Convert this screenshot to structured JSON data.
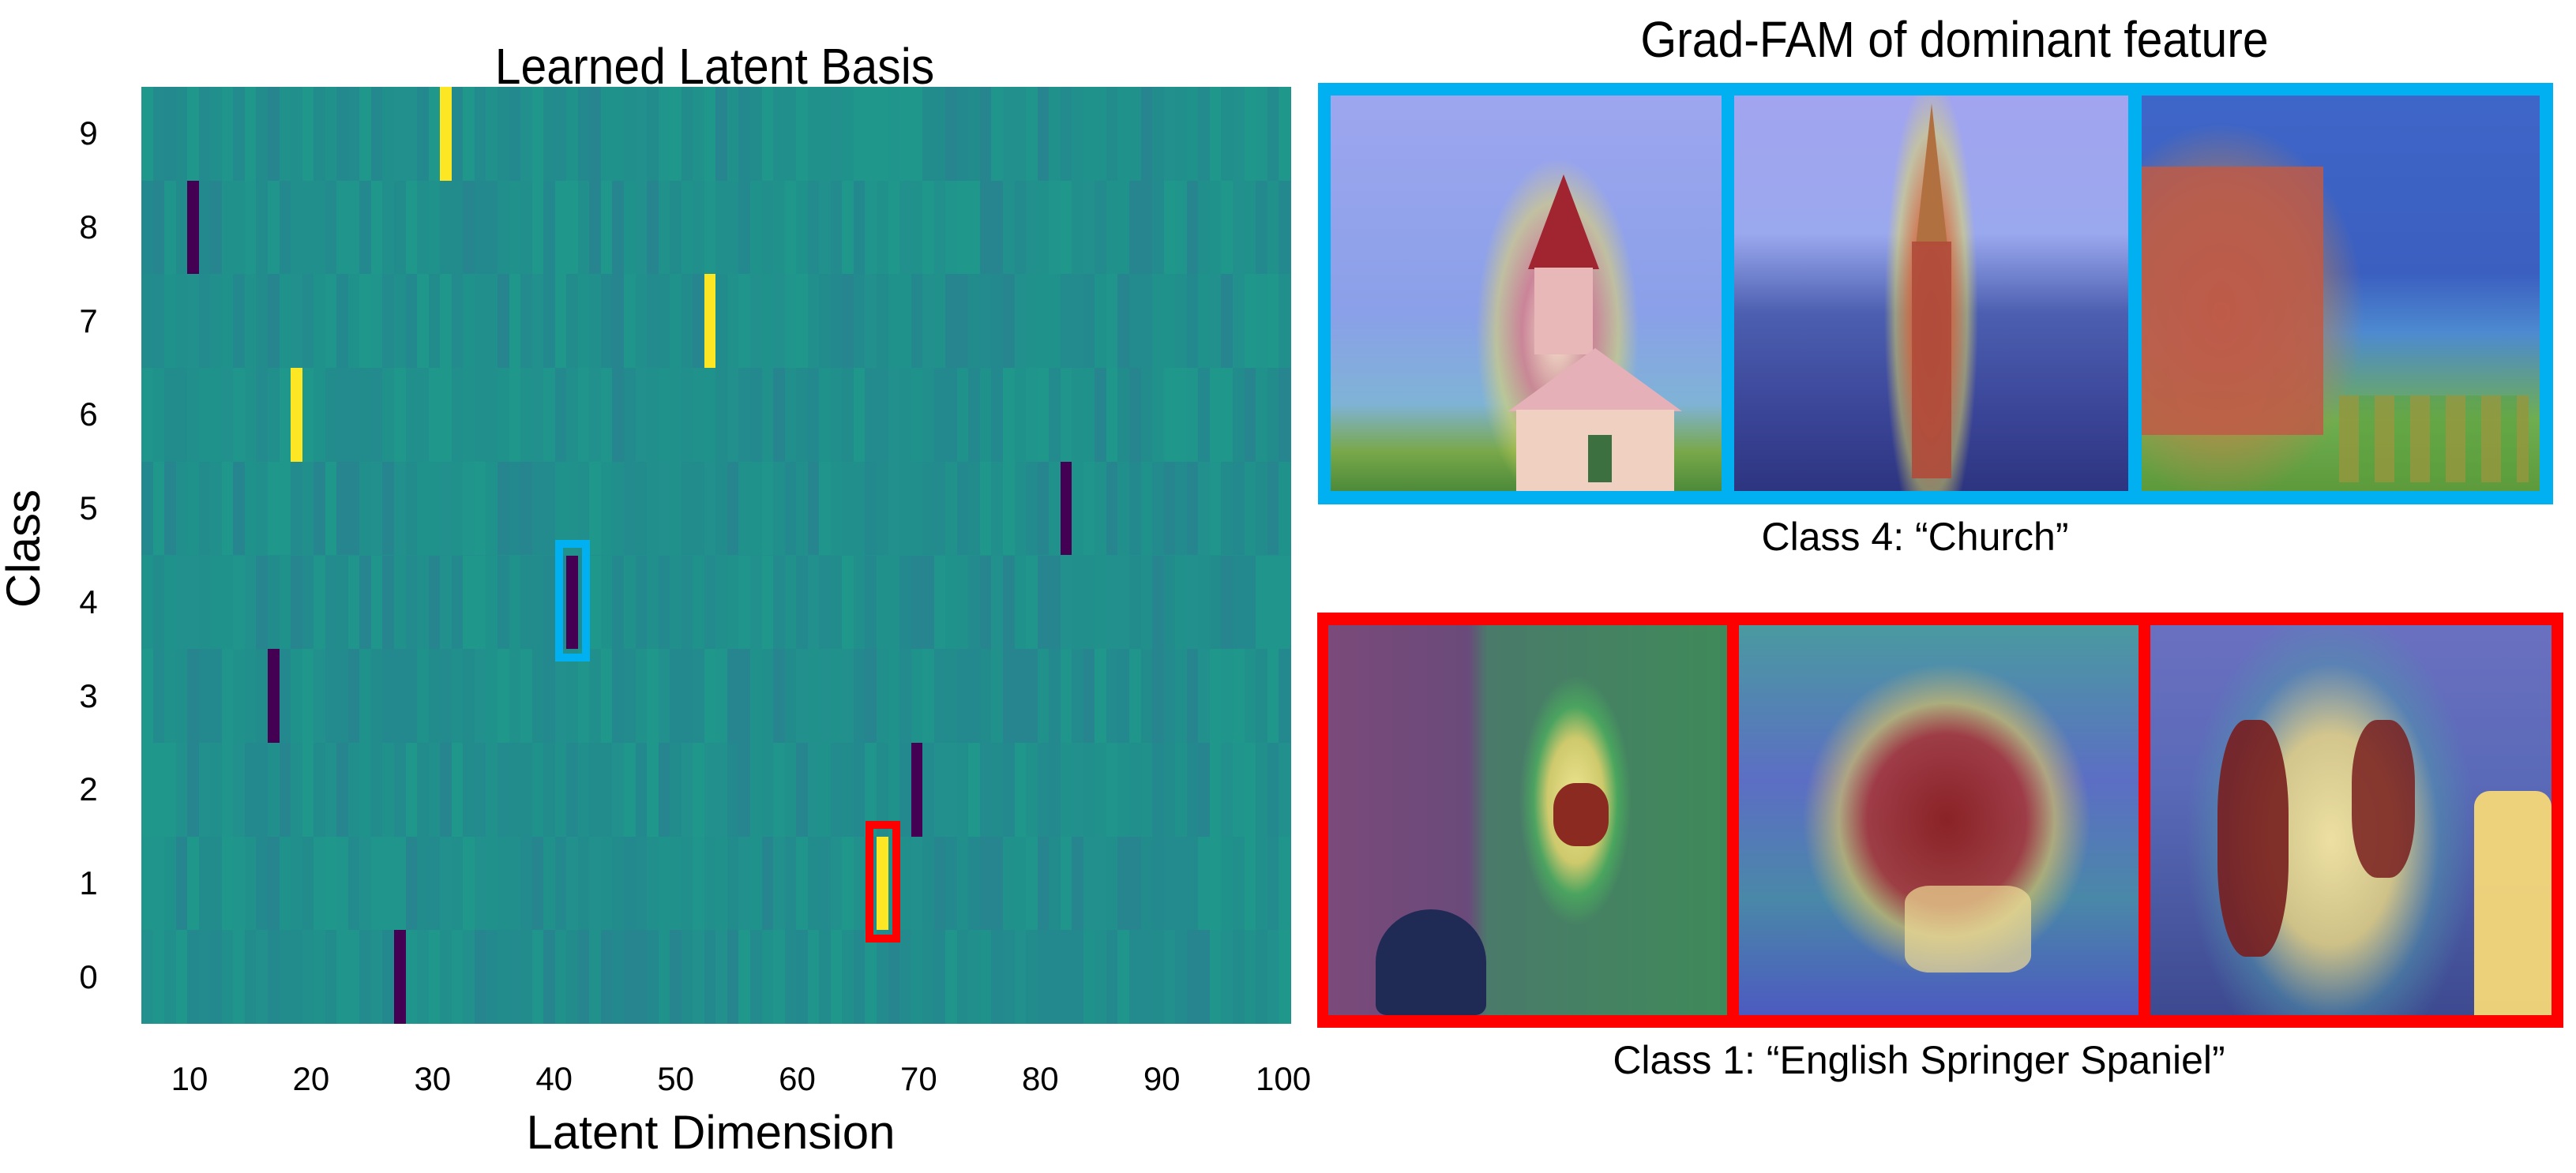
{
  "figure": {
    "left_panel": {
      "title": "Learned Latent Basis",
      "xlabel": "Latent Dimension",
      "ylabel": "Class",
      "x_ticks": [
        "10",
        "20",
        "30",
        "40",
        "50",
        "60",
        "70",
        "80",
        "90",
        "100"
      ],
      "y_ticks": [
        "9",
        "8",
        "7",
        "6",
        "5",
        "4",
        "3",
        "2",
        "1",
        "0"
      ]
    },
    "right_panel": {
      "title": "Grad-FAM of dominant feature",
      "groups": [
        {
          "caption": "Class 4: “Church”",
          "frame_color": "#00B0F0",
          "images": [
            {
              "label": "church-image-1",
              "description": "White church with red steeple on grassy coastal hill, heatmap focused on steeple"
            },
            {
              "label": "church-image-2",
              "description": "Tall gothic spire over town, heatmap focused on spire"
            },
            {
              "label": "church-image-3",
              "description": "Red-brick church with graveyard, heatmap focused on church and gravestones"
            }
          ]
        },
        {
          "caption": "Class 1: “English Springer Spaniel”",
          "frame_color": "#FF0000",
          "images": [
            {
              "label": "spaniel-image-1",
              "description": "Spaniel sitting on grass near hedge, heatmap focused on dog"
            },
            {
              "label": "spaniel-image-2",
              "description": "Spaniel running on grass, heatmap focused on dog body"
            },
            {
              "label": "spaniel-image-3",
              "description": "Spaniel portrait indoors, heatmap focused on dog"
            }
          ]
        }
      ]
    }
  },
  "chart_data": {
    "type": "heatmap",
    "title": "Learned Latent Basis",
    "xlabel": "Latent Dimension",
    "ylabel": "Class",
    "x_ticks": [
      10,
      20,
      30,
      40,
      50,
      60,
      70,
      80,
      90,
      100
    ],
    "y_ticks": [
      0,
      1,
      2,
      3,
      4,
      5,
      6,
      7,
      8,
      9
    ],
    "xlim": [
      6,
      100
    ],
    "colormap": "viridis",
    "background_value": "near zero (teal, ~#21908d)",
    "colors": {
      "positive": "#fde725",
      "negative": "#440154",
      "neutral": "#21908d"
    },
    "grid": false,
    "dominant_features": [
      {
        "class": 9,
        "latent_dim": 32,
        "sign": "positive",
        "col_index": 26
      },
      {
        "class": 8,
        "latent_dim": 10,
        "sign": "negative",
        "col_index": 4
      },
      {
        "class": 7,
        "latent_dim": 54,
        "sign": "positive",
        "col_index": 49
      },
      {
        "class": 6,
        "latent_dim": 20,
        "sign": "positive",
        "col_index": 13
      },
      {
        "class": 5,
        "latent_dim": 83,
        "sign": "negative",
        "col_index": 80
      },
      {
        "class": 4,
        "latent_dim": 42,
        "sign": "negative",
        "col_index": 37,
        "highlight": "#00B0F0"
      },
      {
        "class": 3,
        "latent_dim": 17,
        "sign": "negative",
        "col_index": 11
      },
      {
        "class": 2,
        "latent_dim": 71,
        "sign": "negative",
        "col_index": 67
      },
      {
        "class": 1,
        "latent_dim": 68,
        "sign": "positive",
        "col_index": 64,
        "highlight": "#FF0000"
      },
      {
        "class": 0,
        "latent_dim": 28,
        "sign": "negative",
        "col_index": 22
      }
    ],
    "annotations": [
      {
        "text": "Class 4: “Church”",
        "box_color": "#00B0F0"
      },
      {
        "text": "Class 1: “English Springer Spaniel”",
        "box_color": "#FF0000"
      }
    ]
  }
}
